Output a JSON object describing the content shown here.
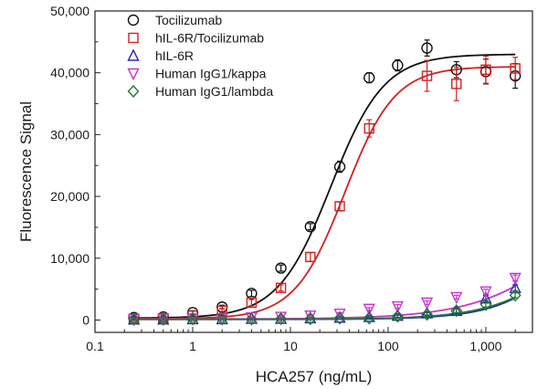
{
  "chart_data": {
    "type": "scatter",
    "xlabel": "HCA257 (ng/mL)",
    "ylabel": "Fluorescence Signal",
    "x_scale": "log",
    "xlim": [
      0.1,
      3000
    ],
    "ylim": [
      -2000,
      50000
    ],
    "xticks": [
      0.1,
      1,
      10,
      100,
      1000
    ],
    "xtick_labels": [
      "0.1",
      "1",
      "10",
      "100",
      "1,000"
    ],
    "yticks": [
      0,
      10000,
      20000,
      30000,
      40000,
      50000
    ],
    "ytick_labels": [
      "0",
      "10,000",
      "20,000",
      "30,000",
      "40,000",
      "50,000"
    ],
    "grid": false,
    "legend_position": "top-left",
    "series": [
      {
        "name": "Tocilizumab",
        "marker": "circle",
        "color": "#111111",
        "x": [
          0.25,
          0.5,
          1,
          2,
          4,
          8,
          16,
          32,
          64,
          125,
          250,
          500,
          1000,
          2000
        ],
        "y": [
          400,
          500,
          1200,
          2100,
          4300,
          8400,
          15100,
          24800,
          39200,
          41200,
          44000,
          40500,
          40200,
          39500
        ],
        "err": [
          300,
          300,
          300,
          300,
          500,
          500,
          500,
          900,
          800,
          900,
          1300,
          1300,
          2000,
          2000
        ],
        "fit": {
          "bottom": 300,
          "top": 43000,
          "ec50": 26,
          "hill": 1.6
        }
      },
      {
        "name": "hIL-6R/Tocilizumab",
        "marker": "square",
        "color": "#d32020",
        "x": [
          0.25,
          0.5,
          1,
          2,
          4,
          8,
          16,
          32,
          64,
          250,
          500,
          1000,
          2000
        ],
        "y": [
          200,
          300,
          700,
          1500,
          2800,
          5200,
          10200,
          18400,
          31000,
          39500,
          38200,
          40500,
          40700
        ],
        "err": [
          300,
          300,
          300,
          300,
          500,
          500,
          700,
          700,
          1400,
          2500,
          2700,
          2200,
          1800
        ],
        "fit": {
          "bottom": 200,
          "top": 41000,
          "ec50": 36,
          "hill": 1.7
        }
      },
      {
        "name": "hIL-6R",
        "marker": "triangle-up",
        "color": "#2a2aa8",
        "x": [
          0.25,
          0.5,
          1,
          2,
          4,
          8,
          16,
          32,
          64,
          125,
          250,
          500,
          1000,
          2000
        ],
        "y": [
          100,
          100,
          150,
          150,
          200,
          200,
          300,
          400,
          500,
          700,
          1100,
          1500,
          3500,
          5200
        ],
        "err": [
          150,
          150,
          150,
          150,
          150,
          150,
          200,
          200,
          200,
          300,
          300,
          400,
          500,
          500
        ],
        "fit": {
          "bottom": 100,
          "top": 60000,
          "ec50": 25000,
          "hill": 1.1
        }
      },
      {
        "name": "Human IgG1/kappa",
        "marker": "triangle-down",
        "color": "#cc33cc",
        "x": [
          0.25,
          0.5,
          1,
          2,
          4,
          8,
          16,
          32,
          64,
          125,
          250,
          500,
          1000,
          2000
        ],
        "y": [
          150,
          200,
          250,
          300,
          400,
          500,
          700,
          1000,
          1800,
          2200,
          2800,
          3700,
          4600,
          6800
        ],
        "err": [
          150,
          150,
          150,
          150,
          150,
          150,
          200,
          200,
          200,
          300,
          300,
          300,
          400,
          500
        ],
        "fit": {
          "bottom": 150,
          "top": 30000,
          "ec50": 12000,
          "hill": 0.85
        }
      },
      {
        "name": "Human IgG1/lambda",
        "marker": "diamond",
        "color": "#1f7a2e",
        "x": [
          0.25,
          0.5,
          1,
          2,
          4,
          8,
          16,
          32,
          64,
          125,
          250,
          500,
          1000,
          2000
        ],
        "y": [
          100,
          100,
          150,
          150,
          150,
          200,
          200,
          300,
          300,
          600,
          900,
          1500,
          2500,
          4000
        ],
        "err": [
          150,
          150,
          150,
          150,
          150,
          150,
          150,
          200,
          200,
          200,
          300,
          300,
          400,
          400
        ],
        "fit": {
          "bottom": 100,
          "top": 40000,
          "ec50": 20000,
          "hill": 1.0
        }
      }
    ]
  }
}
